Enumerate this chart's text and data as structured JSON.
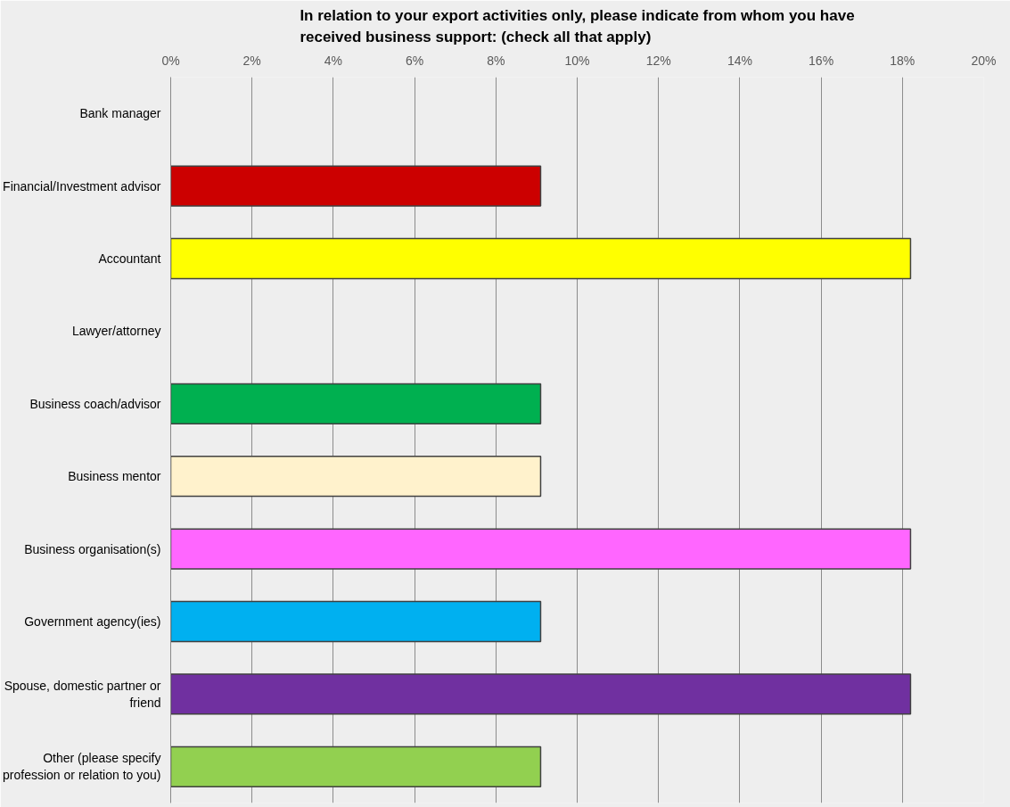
{
  "chart_data": {
    "type": "bar",
    "orientation": "horizontal",
    "title": "In relation to your export activities only, please indicate from whom you have received business support: (check all that apply)",
    "categories": [
      "Bank manager",
      "Financial/Investment advisor",
      "Accountant",
      "Lawyer/attorney",
      "Business coach/advisor",
      "Business mentor",
      "Business organisation(s)",
      "Government agency(ies)",
      "Spouse, domestic partner or friend",
      "Other (please specify profession or relation to you)"
    ],
    "values": [
      0,
      9.1,
      18.2,
      0,
      9.1,
      9.1,
      18.2,
      9.1,
      18.2,
      9.1
    ],
    "colors": [
      null,
      "#cc0000",
      "#ffff00",
      null,
      "#00b050",
      "#fff2cc",
      "#ff66ff",
      "#00b0f0",
      "#7030a0",
      "#92d050"
    ],
    "xlim": [
      0,
      20
    ],
    "xticks": [
      {
        "value": 0,
        "label": "0%"
      },
      {
        "value": 2,
        "label": "2%"
      },
      {
        "value": 4,
        "label": "4%"
      },
      {
        "value": 6,
        "label": "6%"
      },
      {
        "value": 8,
        "label": "8%"
      },
      {
        "value": 10,
        "label": "10%"
      },
      {
        "value": 12,
        "label": "12%"
      },
      {
        "value": 14,
        "label": "14%"
      },
      {
        "value": 16,
        "label": "16%"
      },
      {
        "value": 18,
        "label": "18%"
      },
      {
        "value": 20,
        "label": "20%"
      }
    ],
    "grid": "x"
  }
}
